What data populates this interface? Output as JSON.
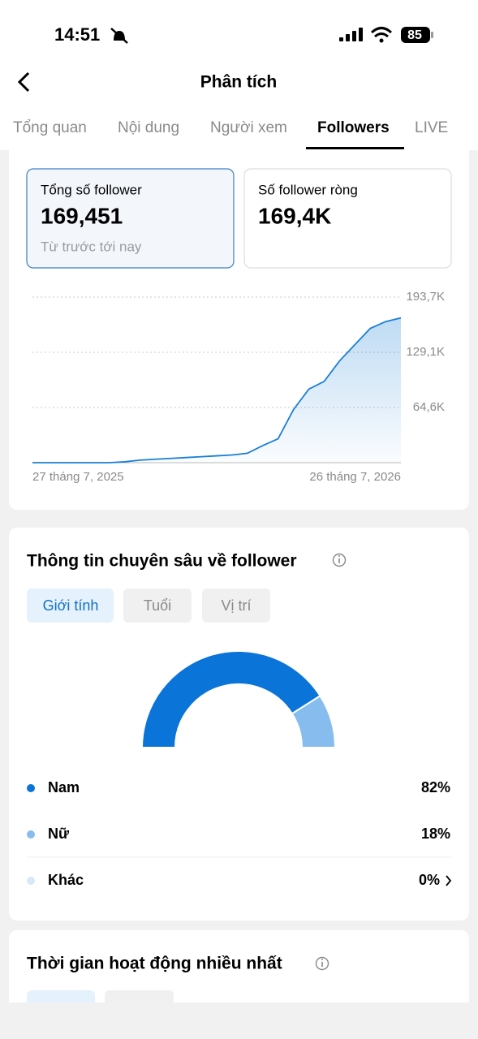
{
  "status_bar": {
    "time": "14:51",
    "battery": "85"
  },
  "header": {
    "title": "Phân tích"
  },
  "tabs": [
    "Tổng quan",
    "Nội dung",
    "Người xem",
    "Followers",
    "LIVE"
  ],
  "cards": [
    {
      "label": "Tổng số follower",
      "value": "169,451",
      "note": "Từ trước tới nay"
    },
    {
      "label": "Số follower ròng",
      "value": "169,4K"
    }
  ],
  "insights": {
    "title": "Thông tin chuyên sâu về follower",
    "filters": [
      "Giới tính",
      "Tuổi",
      "Vị trí"
    ]
  },
  "activity": {
    "title": "Thời gian hoạt động nhiều nhất"
  },
  "chart_data": [
    {
      "type": "line",
      "color": "#1a7fd6",
      "grid": true,
      "categories": [
        "27 tháng 7, 2025",
        null,
        null,
        null,
        null,
        null,
        null,
        null,
        null,
        null,
        null,
        null,
        null,
        null,
        null,
        null,
        null,
        null,
        null,
        null,
        null,
        null,
        null,
        null,
        "26 tháng 7, 2026"
      ],
      "values": [
        0,
        0,
        0,
        0,
        0,
        0,
        1000,
        3000,
        4000,
        5000,
        6000,
        7000,
        8000,
        9000,
        11000,
        20000,
        28000,
        62000,
        86000,
        95000,
        119000,
        138000,
        157000,
        165000,
        169400
      ],
      "ylim": [
        0,
        193700
      ],
      "yticks": [
        {
          "value": 64600,
          "label": "64,6K"
        },
        {
          "value": 129100,
          "label": "129,1K"
        },
        {
          "value": 193700,
          "label": "193,7K"
        }
      ]
    },
    {
      "type": "pie",
      "categories": [
        "Nam",
        "Nữ",
        "Khác"
      ],
      "values": [
        82,
        18,
        0
      ],
      "value_labels": [
        "82%",
        "18%",
        "0%"
      ],
      "colors": [
        "#0a74d8",
        "#86bdee",
        "#d8e8f8"
      ]
    }
  ]
}
